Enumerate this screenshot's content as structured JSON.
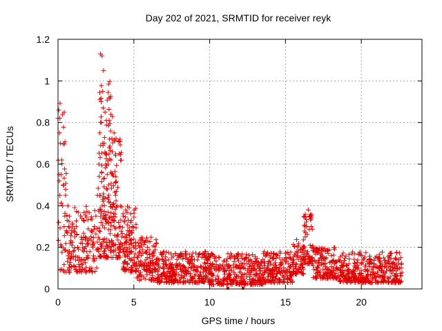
{
  "chart_data": {
    "type": "scatter",
    "title": "Day 202 of 2021, SRMTID for receiver reyk",
    "xlabel": "GPS time / hours",
    "ylabel": "SRMTID / TECUs",
    "xlim": [
      0,
      24
    ],
    "ylim": [
      0,
      1.2
    ],
    "xticks": [
      0,
      5,
      10,
      15,
      20
    ],
    "xtick_labels": [
      "0",
      "5",
      "10",
      "15",
      "20"
    ],
    "yticks": [
      0,
      0.2,
      0.4,
      0.6,
      0.8,
      1,
      1.2
    ],
    "ytick_labels": [
      "0",
      "0.2",
      "0.4",
      "0.6",
      "0.8",
      "1",
      "1.2"
    ],
    "grid": true,
    "marker": "+",
    "colors": {
      "series": "#e00000",
      "grid": "#a0a0a0",
      "axis": "#000000"
    },
    "series": [
      {
        "name": "SRMTID",
        "x": [
          0.0,
          0.05,
          0.1,
          0.12,
          0.15,
          0.2,
          0.25,
          0.3,
          0.35,
          0.4,
          0.45,
          0.5,
          0.55,
          0.6,
          0.65,
          0.7,
          0.8,
          0.9,
          1.0,
          1.1,
          1.2,
          1.3,
          1.4,
          1.5,
          1.6,
          1.7,
          1.8,
          1.9,
          2.0,
          2.1,
          2.2,
          2.3,
          2.4,
          2.5,
          2.6,
          2.7,
          2.75,
          2.8,
          2.85,
          2.9,
          2.95,
          3.0,
          3.05,
          3.1,
          3.15,
          3.2,
          3.25,
          3.3,
          3.35,
          3.4,
          3.5,
          3.6,
          3.7,
          3.8,
          3.9,
          4.0,
          4.1,
          4.2,
          4.3,
          4.4,
          4.5,
          4.6,
          4.7,
          4.8,
          4.9,
          5.0,
          5.2,
          5.4,
          5.6,
          5.8,
          6.0,
          6.3,
          6.6,
          7.0,
          7.4,
          7.8,
          8.2,
          8.6,
          9.0,
          9.4,
          9.8,
          10.2,
          10.6,
          11.0,
          11.3,
          11.6,
          12.0,
          12.2,
          12.5,
          12.8,
          13.0,
          13.3,
          13.6,
          14.0,
          14.3,
          14.6,
          14.8,
          15.0,
          15.2,
          15.5,
          15.8,
          16.0,
          16.2,
          16.3,
          16.4,
          16.5,
          16.6,
          16.7,
          16.8,
          17.0,
          17.3,
          17.6,
          18.0,
          18.4,
          18.8,
          19.2,
          19.6,
          20.0,
          20.4,
          20.8,
          21.2,
          21.6,
          22.0,
          22.3,
          22.6
        ],
        "y": [
          0.82,
          0.86,
          0.75,
          0.45,
          0.7,
          0.55,
          0.62,
          0.4,
          0.5,
          0.3,
          0.35,
          0.45,
          0.28,
          0.33,
          0.4,
          0.3,
          0.22,
          0.28,
          0.18,
          0.25,
          0.3,
          0.2,
          0.15,
          0.22,
          0.12,
          0.18,
          0.25,
          0.15,
          0.22,
          0.18,
          0.28,
          0.2,
          0.3,
          0.35,
          0.45,
          0.6,
          0.75,
          1.13,
          0.9,
          1.12,
          0.95,
          1.05,
          0.7,
          0.85,
          0.6,
          0.65,
          0.55,
          0.6,
          0.5,
          0.72,
          0.62,
          0.55,
          0.75,
          0.45,
          0.4,
          0.32,
          0.3,
          0.25,
          0.35,
          0.22,
          0.2,
          0.28,
          0.18,
          0.22,
          0.3,
          0.2,
          0.15,
          0.18,
          0.12,
          0.14,
          0.1,
          0.12,
          0.09,
          0.1,
          0.08,
          0.12,
          0.09,
          0.1,
          0.11,
          0.08,
          0.09,
          0.12,
          0.1,
          0.07,
          0.09,
          0.08,
          0.1,
          0.12,
          0.09,
          0.11,
          0.13,
          0.1,
          0.08,
          0.07,
          0.09,
          0.1,
          0.14,
          0.15,
          0.12,
          0.14,
          0.16,
          0.19,
          0.2,
          0.25,
          0.3,
          0.38,
          0.35,
          0.3,
          0.2,
          0.18,
          0.15,
          0.12,
          0.13,
          0.1,
          0.11,
          0.09,
          0.1,
          0.12,
          0.09,
          0.08,
          0.1,
          0.11,
          0.12,
          0.14,
          0.15
        ]
      }
    ],
    "density": [
      [
        0.0,
        0.6,
        0.08,
        0.9,
        40
      ],
      [
        0.6,
        2.6,
        0.08,
        0.4,
        140
      ],
      [
        2.6,
        3.6,
        0.15,
        1.0,
        160
      ],
      [
        3.6,
        4.2,
        0.15,
        0.75,
        80
      ],
      [
        4.2,
        5.2,
        0.08,
        0.4,
        110
      ],
      [
        5.2,
        6.5,
        0.04,
        0.25,
        120
      ],
      [
        6.5,
        10.0,
        0.03,
        0.18,
        320
      ],
      [
        10.0,
        13.5,
        0.02,
        0.17,
        300
      ],
      [
        13.5,
        15.5,
        0.03,
        0.18,
        180
      ],
      [
        15.5,
        16.2,
        0.07,
        0.24,
        60
      ],
      [
        16.2,
        16.8,
        0.12,
        0.37,
        60
      ],
      [
        16.8,
        18.5,
        0.05,
        0.2,
        140
      ],
      [
        18.5,
        22.7,
        0.03,
        0.18,
        360
      ]
    ]
  }
}
